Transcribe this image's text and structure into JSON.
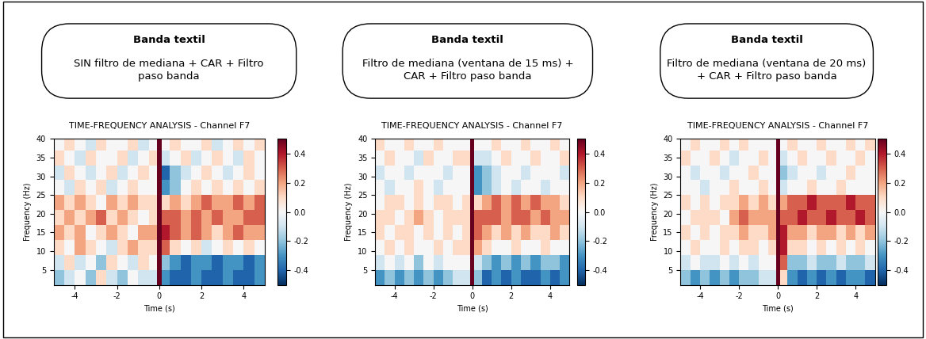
{
  "chart_data": [
    {
      "type": "heatmap",
      "header_title": "Banda textil",
      "header_text": "SIN filtro de mediana + CAR + Filtro paso banda",
      "title": "TIME-FREQUENCY ANALYSIS - Channel F7",
      "x_label": "Time (s)",
      "y_label": "Frequency (Hz)",
      "xlim": [
        -5,
        5
      ],
      "ylim": [
        1,
        40
      ],
      "xticks": [
        -4,
        -2,
        0,
        2,
        4
      ],
      "yticks": [
        5,
        10,
        15,
        20,
        25,
        30,
        35,
        40
      ],
      "time_edges": [
        -5,
        -4.5,
        -4,
        -3.5,
        -3,
        -2.5,
        -2,
        -1.5,
        -1,
        -0.5,
        -0.1,
        0.1,
        0.5,
        1,
        1.5,
        2,
        2.5,
        3,
        3.5,
        4,
        4.5,
        5
      ],
      "frequency_edges": [
        1,
        5,
        9,
        13,
        17,
        21,
        25,
        29,
        33,
        37,
        40
      ],
      "cells": [
        [
          -0.2,
          -0.1,
          0.0,
          -0.2,
          0.1,
          -0.1,
          -0.2,
          0.0,
          -0.1,
          -0.1,
          0.5,
          -0.3,
          -0.4,
          -0.4,
          -0.3,
          -0.4,
          -0.4,
          -0.3,
          -0.4,
          -0.4,
          -0.3
        ],
        [
          -0.1,
          0.1,
          -0.1,
          0.0,
          -0.2,
          0.1,
          0.0,
          -0.1,
          0.1,
          0.0,
          0.5,
          -0.2,
          -0.3,
          -0.4,
          -0.3,
          -0.3,
          -0.4,
          -0.3,
          -0.3,
          -0.4,
          -0.3
        ],
        [
          0.1,
          0.0,
          0.2,
          0.1,
          0.0,
          -0.1,
          0.1,
          0.2,
          0.1,
          0.1,
          0.5,
          0.3,
          0.1,
          0.0,
          0.1,
          -0.1,
          0.0,
          0.1,
          0.0,
          0.1,
          0.0
        ],
        [
          0.2,
          0.1,
          0.2,
          0.0,
          0.1,
          0.2,
          0.1,
          0.0,
          0.2,
          0.2,
          0.5,
          0.4,
          0.3,
          0.2,
          0.3,
          0.2,
          0.1,
          0.2,
          0.3,
          0.2,
          0.2
        ],
        [
          0.1,
          0.2,
          0.1,
          0.2,
          0.3,
          0.1,
          0.2,
          0.1,
          0.0,
          0.1,
          0.5,
          0.3,
          0.3,
          0.2,
          0.3,
          0.2,
          0.3,
          0.2,
          0.2,
          0.3,
          0.3
        ],
        [
          0.2,
          0.1,
          0.2,
          0.1,
          0.0,
          0.2,
          0.1,
          0.2,
          0.1,
          0.1,
          0.5,
          0.1,
          0.2,
          0.1,
          0.2,
          0.3,
          0.2,
          0.2,
          0.3,
          0.2,
          0.3
        ],
        [
          0.0,
          -0.1,
          0.1,
          0.0,
          0.1,
          -0.1,
          0.0,
          0.1,
          0.0,
          0.0,
          0.5,
          -0.3,
          -0.2,
          0.0,
          0.1,
          0.0,
          0.1,
          0.0,
          0.1,
          0.0,
          0.1
        ],
        [
          -0.1,
          0.1,
          0.0,
          -0.1,
          0.0,
          0.1,
          -0.1,
          0.0,
          0.1,
          0.0,
          0.5,
          -0.4,
          -0.2,
          -0.1,
          0.0,
          0.1,
          0.0,
          -0.1,
          0.0,
          0.1,
          0.0
        ],
        [
          0.1,
          0.0,
          -0.1,
          0.1,
          0.0,
          0.0,
          0.1,
          -0.1,
          0.0,
          0.1,
          0.5,
          -0.1,
          0.0,
          0.1,
          -0.1,
          0.0,
          0.1,
          0.0,
          -0.1,
          0.1,
          0.0
        ],
        [
          0.0,
          0.1,
          0.0,
          -0.1,
          0.1,
          0.0,
          0.0,
          0.1,
          -0.1,
          0.0,
          0.5,
          0.0,
          0.1,
          0.0,
          0.0,
          0.1,
          -0.1,
          0.0,
          0.1,
          0.0,
          0.1
        ]
      ],
      "colorbar": {
        "range": [
          -0.5,
          0.5
        ],
        "ticks": [
          -0.4,
          -0.2,
          {
            "value": 0,
            "label": "0.0"
          },
          0.2,
          0.4
        ]
      }
    },
    {
      "type": "heatmap",
      "header_title": "Banda textil",
      "header_text": "Filtro de mediana (ventana de 15 ms) + CAR + Filtro paso banda",
      "title": "TIME-FREQUENCY ANALYSIS - Channel F7",
      "x_label": "Time (s)",
      "y_label": "Frequency (Hz)",
      "xlim": [
        -5,
        5
      ],
      "ylim": [
        1,
        40
      ],
      "xticks": [
        -4,
        -2,
        0,
        2,
        4
      ],
      "yticks": [
        5,
        10,
        15,
        20,
        25,
        30,
        35,
        40
      ],
      "time_edges": [
        -5,
        -4.5,
        -4,
        -3.5,
        -3,
        -2.5,
        -2,
        -1.5,
        -1,
        -0.5,
        -0.1,
        0.1,
        0.5,
        1,
        1.5,
        2,
        2.5,
        3,
        3.5,
        4,
        4.5,
        5
      ],
      "frequency_edges": [
        1,
        5,
        9,
        13,
        17,
        21,
        25,
        29,
        33,
        37,
        40
      ],
      "cells": [
        [
          -0.3,
          -0.2,
          -0.3,
          -0.2,
          -0.3,
          -0.2,
          -0.3,
          -0.2,
          -0.1,
          -0.1,
          0.5,
          -0.2,
          -0.4,
          -0.3,
          -0.4,
          -0.3,
          -0.4,
          -0.4,
          -0.3,
          -0.4,
          -0.3
        ],
        [
          -0.1,
          0.0,
          -0.1,
          0.0,
          -0.2,
          0.0,
          -0.1,
          0.0,
          0.0,
          0.0,
          0.5,
          -0.1,
          -0.2,
          -0.3,
          -0.2,
          -0.3,
          -0.2,
          -0.3,
          -0.2,
          -0.2,
          -0.3
        ],
        [
          0.0,
          0.1,
          0.0,
          0.1,
          0.0,
          0.0,
          0.1,
          0.0,
          0.1,
          0.1,
          0.5,
          0.2,
          0.1,
          0.0,
          0.0,
          0.1,
          0.0,
          0.0,
          0.1,
          0.0,
          0.0
        ],
        [
          0.1,
          0.0,
          0.1,
          0.1,
          0.0,
          0.1,
          0.0,
          0.1,
          0.0,
          0.1,
          0.5,
          0.3,
          0.2,
          0.1,
          0.2,
          0.1,
          0.2,
          0.1,
          0.1,
          0.2,
          0.1
        ],
        [
          0.1,
          0.1,
          0.0,
          0.1,
          0.2,
          0.1,
          0.0,
          0.1,
          0.1,
          0.1,
          0.5,
          0.3,
          0.3,
          0.3,
          0.2,
          0.3,
          0.3,
          0.2,
          0.3,
          0.2,
          0.2
        ],
        [
          0.0,
          0.1,
          0.1,
          0.0,
          0.1,
          0.0,
          0.1,
          0.1,
          0.0,
          0.1,
          0.5,
          0.1,
          0.2,
          0.3,
          0.2,
          0.3,
          0.2,
          0.3,
          0.2,
          0.2,
          0.1
        ],
        [
          0.0,
          -0.1,
          0.0,
          0.0,
          0.1,
          0.0,
          -0.1,
          0.0,
          0.0,
          0.0,
          0.5,
          -0.3,
          -0.2,
          -0.1,
          0.0,
          -0.1,
          0.0,
          0.0,
          -0.1,
          0.0,
          0.0
        ],
        [
          -0.1,
          0.0,
          0.0,
          -0.1,
          0.0,
          0.0,
          0.0,
          -0.1,
          0.0,
          0.0,
          0.5,
          -0.3,
          -0.2,
          -0.1,
          0.0,
          0.0,
          -0.1,
          0.0,
          0.0,
          0.0,
          -0.1
        ],
        [
          0.0,
          0.1,
          0.0,
          0.0,
          -0.1,
          0.1,
          0.0,
          0.0,
          0.1,
          0.1,
          0.5,
          -0.1,
          -0.1,
          0.0,
          0.1,
          0.0,
          0.0,
          0.1,
          0.0,
          0.0,
          0.1
        ],
        [
          0.1,
          0.0,
          0.0,
          0.1,
          0.0,
          0.0,
          0.1,
          0.0,
          0.0,
          0.0,
          0.5,
          0.0,
          0.0,
          0.1,
          0.0,
          0.0,
          0.1,
          0.0,
          0.0,
          0.1,
          0.0
        ]
      ],
      "colorbar": {
        "range": [
          -0.5,
          0.5
        ],
        "ticks": [
          -0.4,
          -0.2,
          {
            "value": 0,
            "label": "0.0"
          },
          0.2,
          0.4
        ]
      }
    },
    {
      "type": "heatmap",
      "header_title": "Banda textil",
      "header_text": "Filtro de mediana (ventana de 20 ms) + CAR + Filtro paso banda",
      "title": "TIME-FREQUENCY ANALYSIS - Channel F7",
      "x_label": "Time (s)",
      "y_label": "Frequency (Hz)",
      "xlim": [
        -5,
        5
      ],
      "ylim": [
        1,
        40
      ],
      "xticks": [
        -4,
        -2,
        0,
        2,
        4
      ],
      "yticks": [
        5,
        10,
        15,
        20,
        25,
        30,
        35,
        40
      ],
      "time_edges": [
        -5,
        -4.5,
        -4,
        -3.5,
        -3,
        -2.5,
        -2,
        -1.5,
        -1,
        -0.5,
        -0.1,
        0.1,
        0.5,
        1,
        1.5,
        2,
        2.5,
        3,
        3.5,
        4,
        4.5,
        5
      ],
      "frequency_edges": [
        1,
        5,
        9,
        13,
        17,
        21,
        25,
        29,
        33,
        37,
        40
      ],
      "cells": [
        [
          -0.2,
          -0.3,
          -0.2,
          -0.3,
          -0.2,
          -0.3,
          -0.2,
          -0.2,
          -0.1,
          -0.1,
          0.5,
          0.1,
          -0.3,
          -0.4,
          -0.3,
          -0.4,
          -0.3,
          -0.4,
          -0.3,
          -0.3,
          -0.4
        ],
        [
          -0.1,
          0.0,
          -0.1,
          -0.1,
          0.0,
          -0.1,
          0.0,
          -0.1,
          0.0,
          0.0,
          0.5,
          0.3,
          -0.2,
          -0.2,
          -0.1,
          -0.2,
          -0.2,
          -0.1,
          -0.2,
          -0.2,
          -0.1
        ],
        [
          0.0,
          0.1,
          0.0,
          0.0,
          0.1,
          0.0,
          0.1,
          0.1,
          0.0,
          0.1,
          0.5,
          0.4,
          0.1,
          0.1,
          0.0,
          0.1,
          0.0,
          0.1,
          0.0,
          0.1,
          0.0
        ],
        [
          0.1,
          0.0,
          0.1,
          0.0,
          0.1,
          0.1,
          0.2,
          0.1,
          0.1,
          0.2,
          0.5,
          0.4,
          0.2,
          0.2,
          0.1,
          0.2,
          0.2,
          0.1,
          0.2,
          0.1,
          0.2
        ],
        [
          0.0,
          0.1,
          0.1,
          0.1,
          0.0,
          0.2,
          0.3,
          0.2,
          0.2,
          0.2,
          0.5,
          0.3,
          0.3,
          0.4,
          0.3,
          0.3,
          0.4,
          0.3,
          0.3,
          0.4,
          0.3
        ],
        [
          0.1,
          0.0,
          0.1,
          0.0,
          0.1,
          0.1,
          0.2,
          0.1,
          0.2,
          0.1,
          0.5,
          0.2,
          0.3,
          0.3,
          0.4,
          0.3,
          0.3,
          0.3,
          0.4,
          0.3,
          0.3
        ],
        [
          0.0,
          0.0,
          -0.1,
          0.0,
          0.0,
          0.1,
          0.0,
          0.0,
          0.1,
          0.0,
          0.5,
          -0.1,
          0.0,
          0.0,
          0.1,
          0.0,
          0.0,
          0.1,
          0.0,
          0.0,
          0.0
        ],
        [
          0.0,
          -0.1,
          0.0,
          0.0,
          -0.1,
          0.0,
          0.0,
          0.1,
          0.0,
          0.0,
          0.5,
          -0.2,
          -0.1,
          0.0,
          0.0,
          -0.1,
          0.0,
          0.0,
          0.1,
          0.0,
          0.0
        ],
        [
          0.1,
          0.0,
          0.0,
          0.1,
          0.0,
          -0.1,
          0.0,
          0.0,
          0.1,
          0.0,
          0.5,
          -0.1,
          0.0,
          0.1,
          0.0,
          0.0,
          0.1,
          0.0,
          0.0,
          0.1,
          0.0
        ],
        [
          0.0,
          0.1,
          0.0,
          0.0,
          0.1,
          0.0,
          0.1,
          0.0,
          0.0,
          0.0,
          0.5,
          0.0,
          0.1,
          0.0,
          0.0,
          0.1,
          0.0,
          0.0,
          0.1,
          0.0,
          0.1
        ]
      ],
      "colorbar": {
        "range": [
          -0.5,
          0.5
        ],
        "ticks": [
          -0.4,
          -0.2,
          {
            "value": 0,
            "label": "0.0"
          },
          0.2,
          0.4
        ]
      }
    }
  ]
}
